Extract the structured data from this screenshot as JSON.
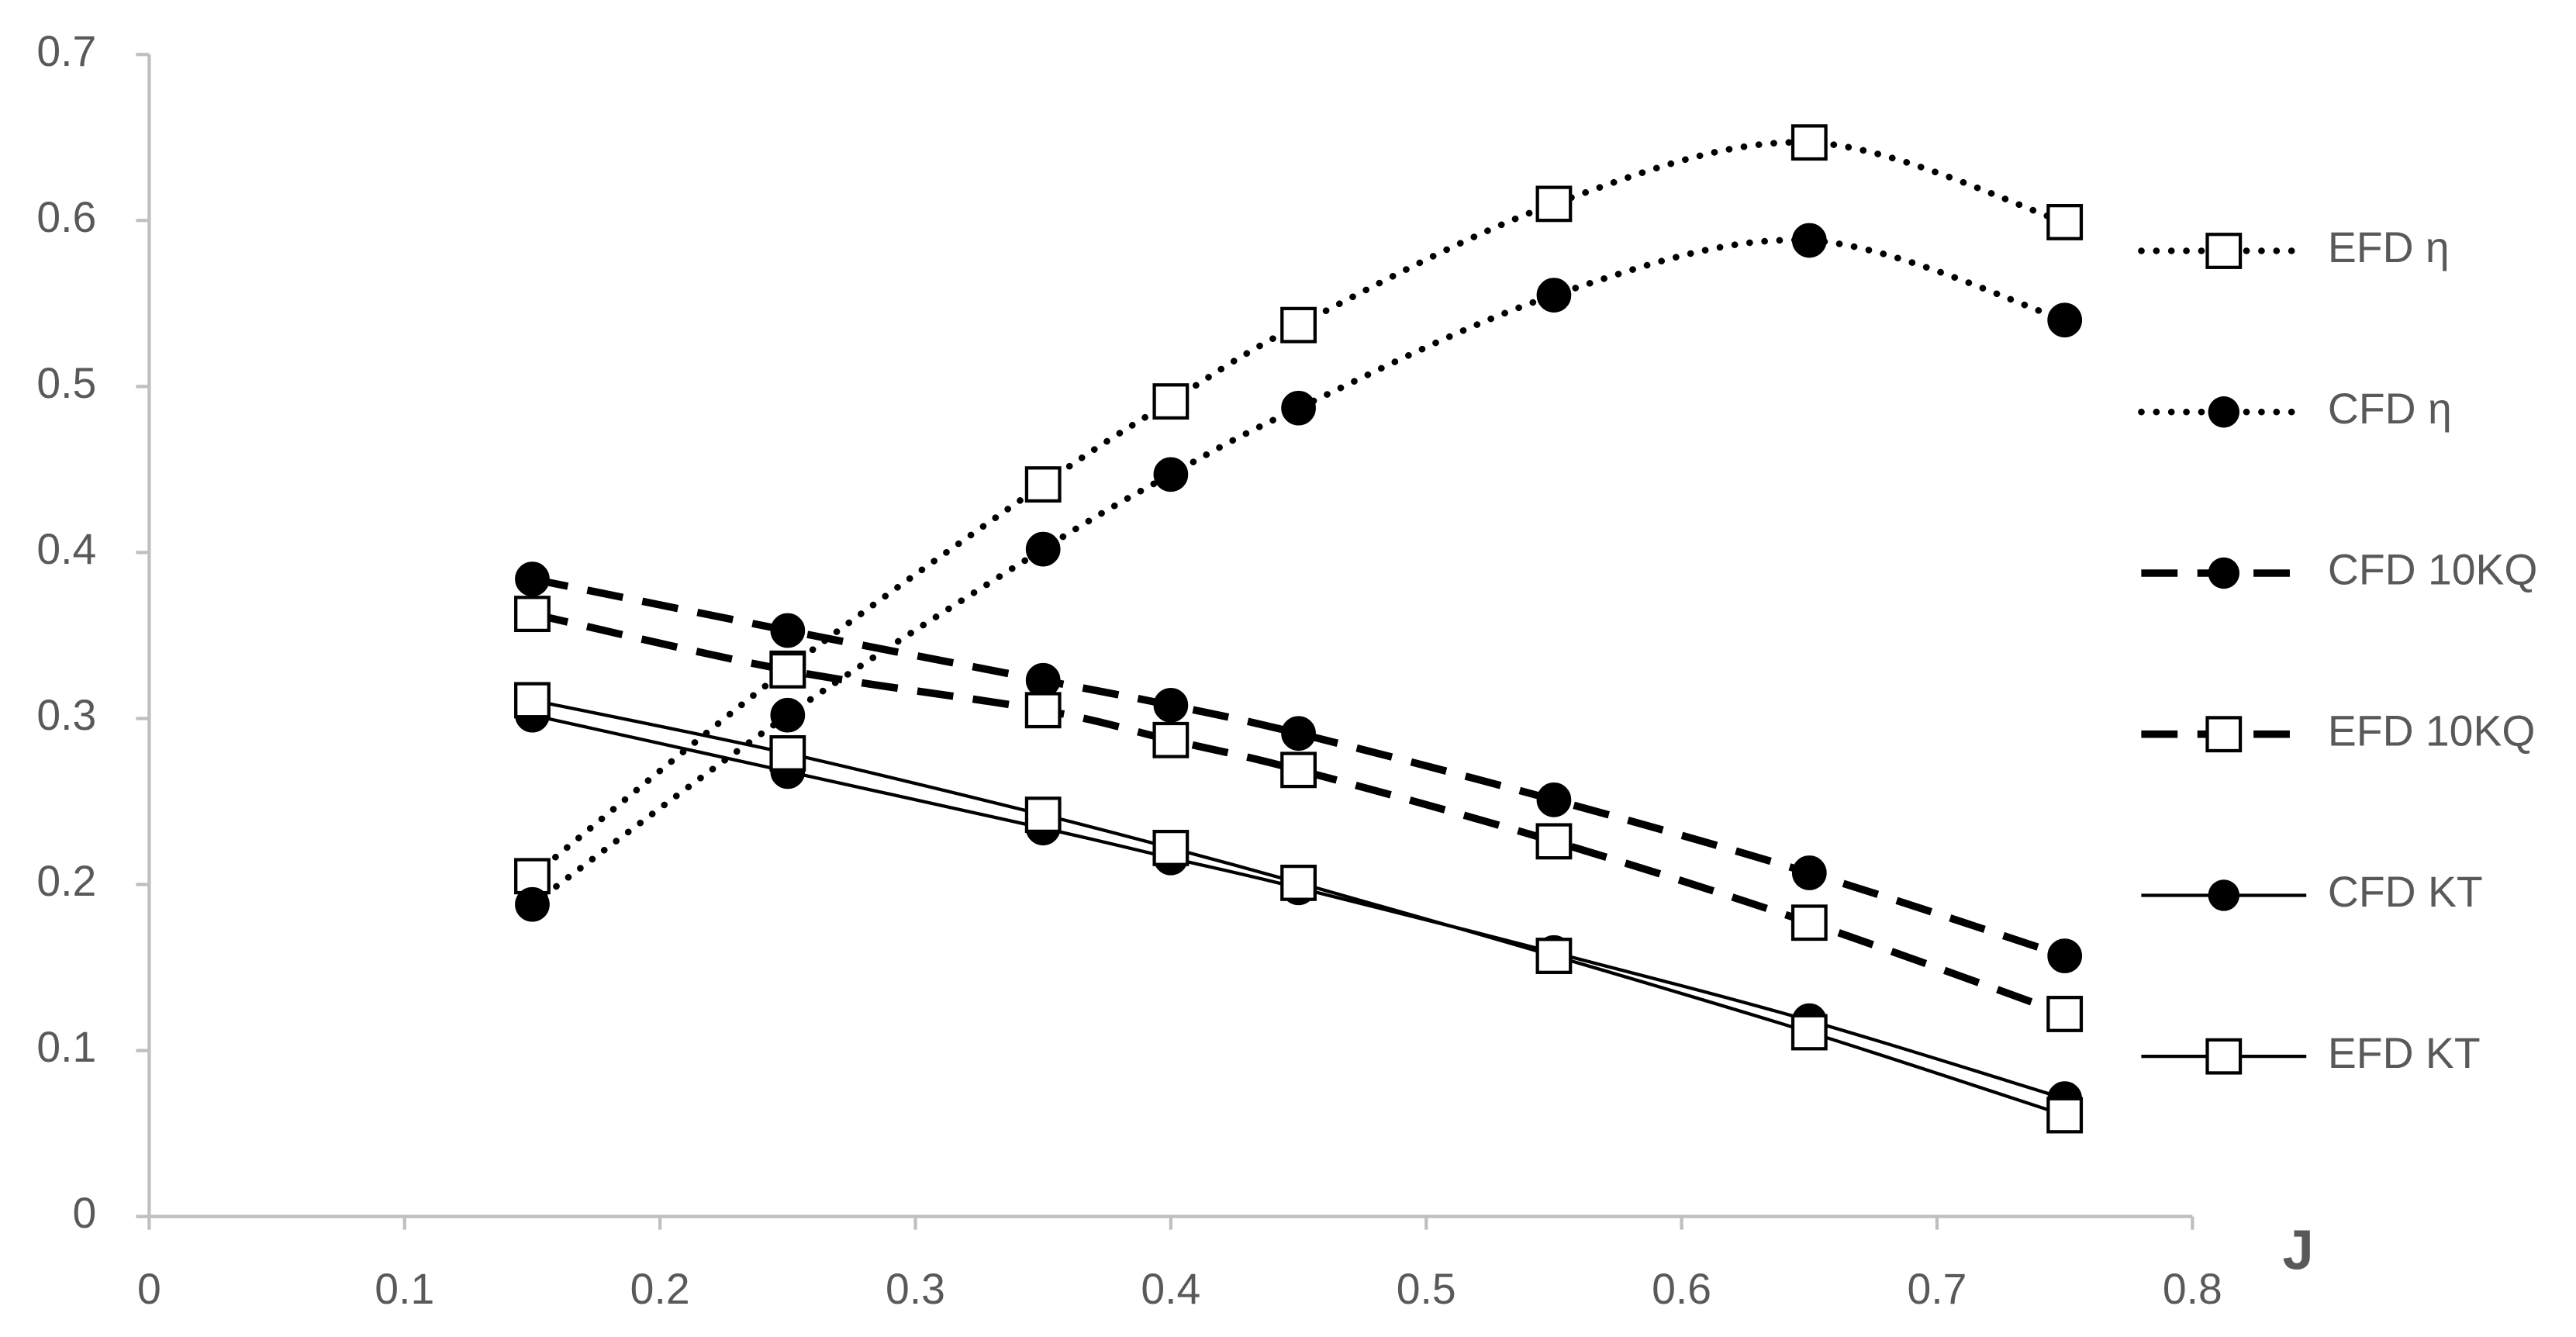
{
  "chart_data": {
    "type": "line",
    "x_label": "J",
    "x": [
      0.15,
      0.25,
      0.35,
      0.4,
      0.45,
      0.55,
      0.65,
      0.75
    ],
    "xlim": [
      0,
      0.8
    ],
    "xticks": [
      0,
      0.1,
      0.2,
      0.3,
      0.4,
      0.5,
      0.6,
      0.7,
      0.8
    ],
    "ylim": [
      0,
      0.7
    ],
    "yticks": [
      0,
      0.1,
      0.2,
      0.3,
      0.4,
      0.5,
      0.6,
      0.7
    ],
    "grid": false,
    "legend": "right",
    "series": [
      {
        "name": "EFD η",
        "color": "#000000",
        "dash": "dot",
        "marker": "square",
        "values": [
          0.205,
          0.33,
          0.441,
          0.491,
          0.537,
          0.61,
          0.647,
          0.599
        ]
      },
      {
        "name": "CFD η",
        "color": "#000000",
        "dash": "dot",
        "marker": "circle",
        "values": [
          0.188,
          0.302,
          0.402,
          0.447,
          0.487,
          0.555,
          0.588,
          0.54
        ]
      },
      {
        "name": "CFD 10KQ",
        "color": "#000000",
        "dash": "dash",
        "marker": "circle",
        "values": [
          0.384,
          0.353,
          0.323,
          0.308,
          0.291,
          0.251,
          0.207,
          0.157
        ]
      },
      {
        "name": "EFD 10KQ",
        "color": "#000000",
        "dash": "dash",
        "marker": "square",
        "values": [
          0.363,
          0.329,
          0.305,
          0.287,
          0.269,
          0.226,
          0.177,
          0.122
        ]
      },
      {
        "name": "CFD KT",
        "color": "#000000",
        "dash": "solid",
        "marker": "circle",
        "values": [
          0.302,
          0.268,
          0.234,
          0.216,
          0.198,
          0.159,
          0.118,
          0.071
        ]
      },
      {
        "name": "EFD KT",
        "color": "#000000",
        "dash": "solid",
        "marker": "square",
        "values": [
          0.311,
          0.279,
          0.242,
          0.222,
          0.201,
          0.157,
          0.111,
          0.061
        ]
      }
    ]
  }
}
